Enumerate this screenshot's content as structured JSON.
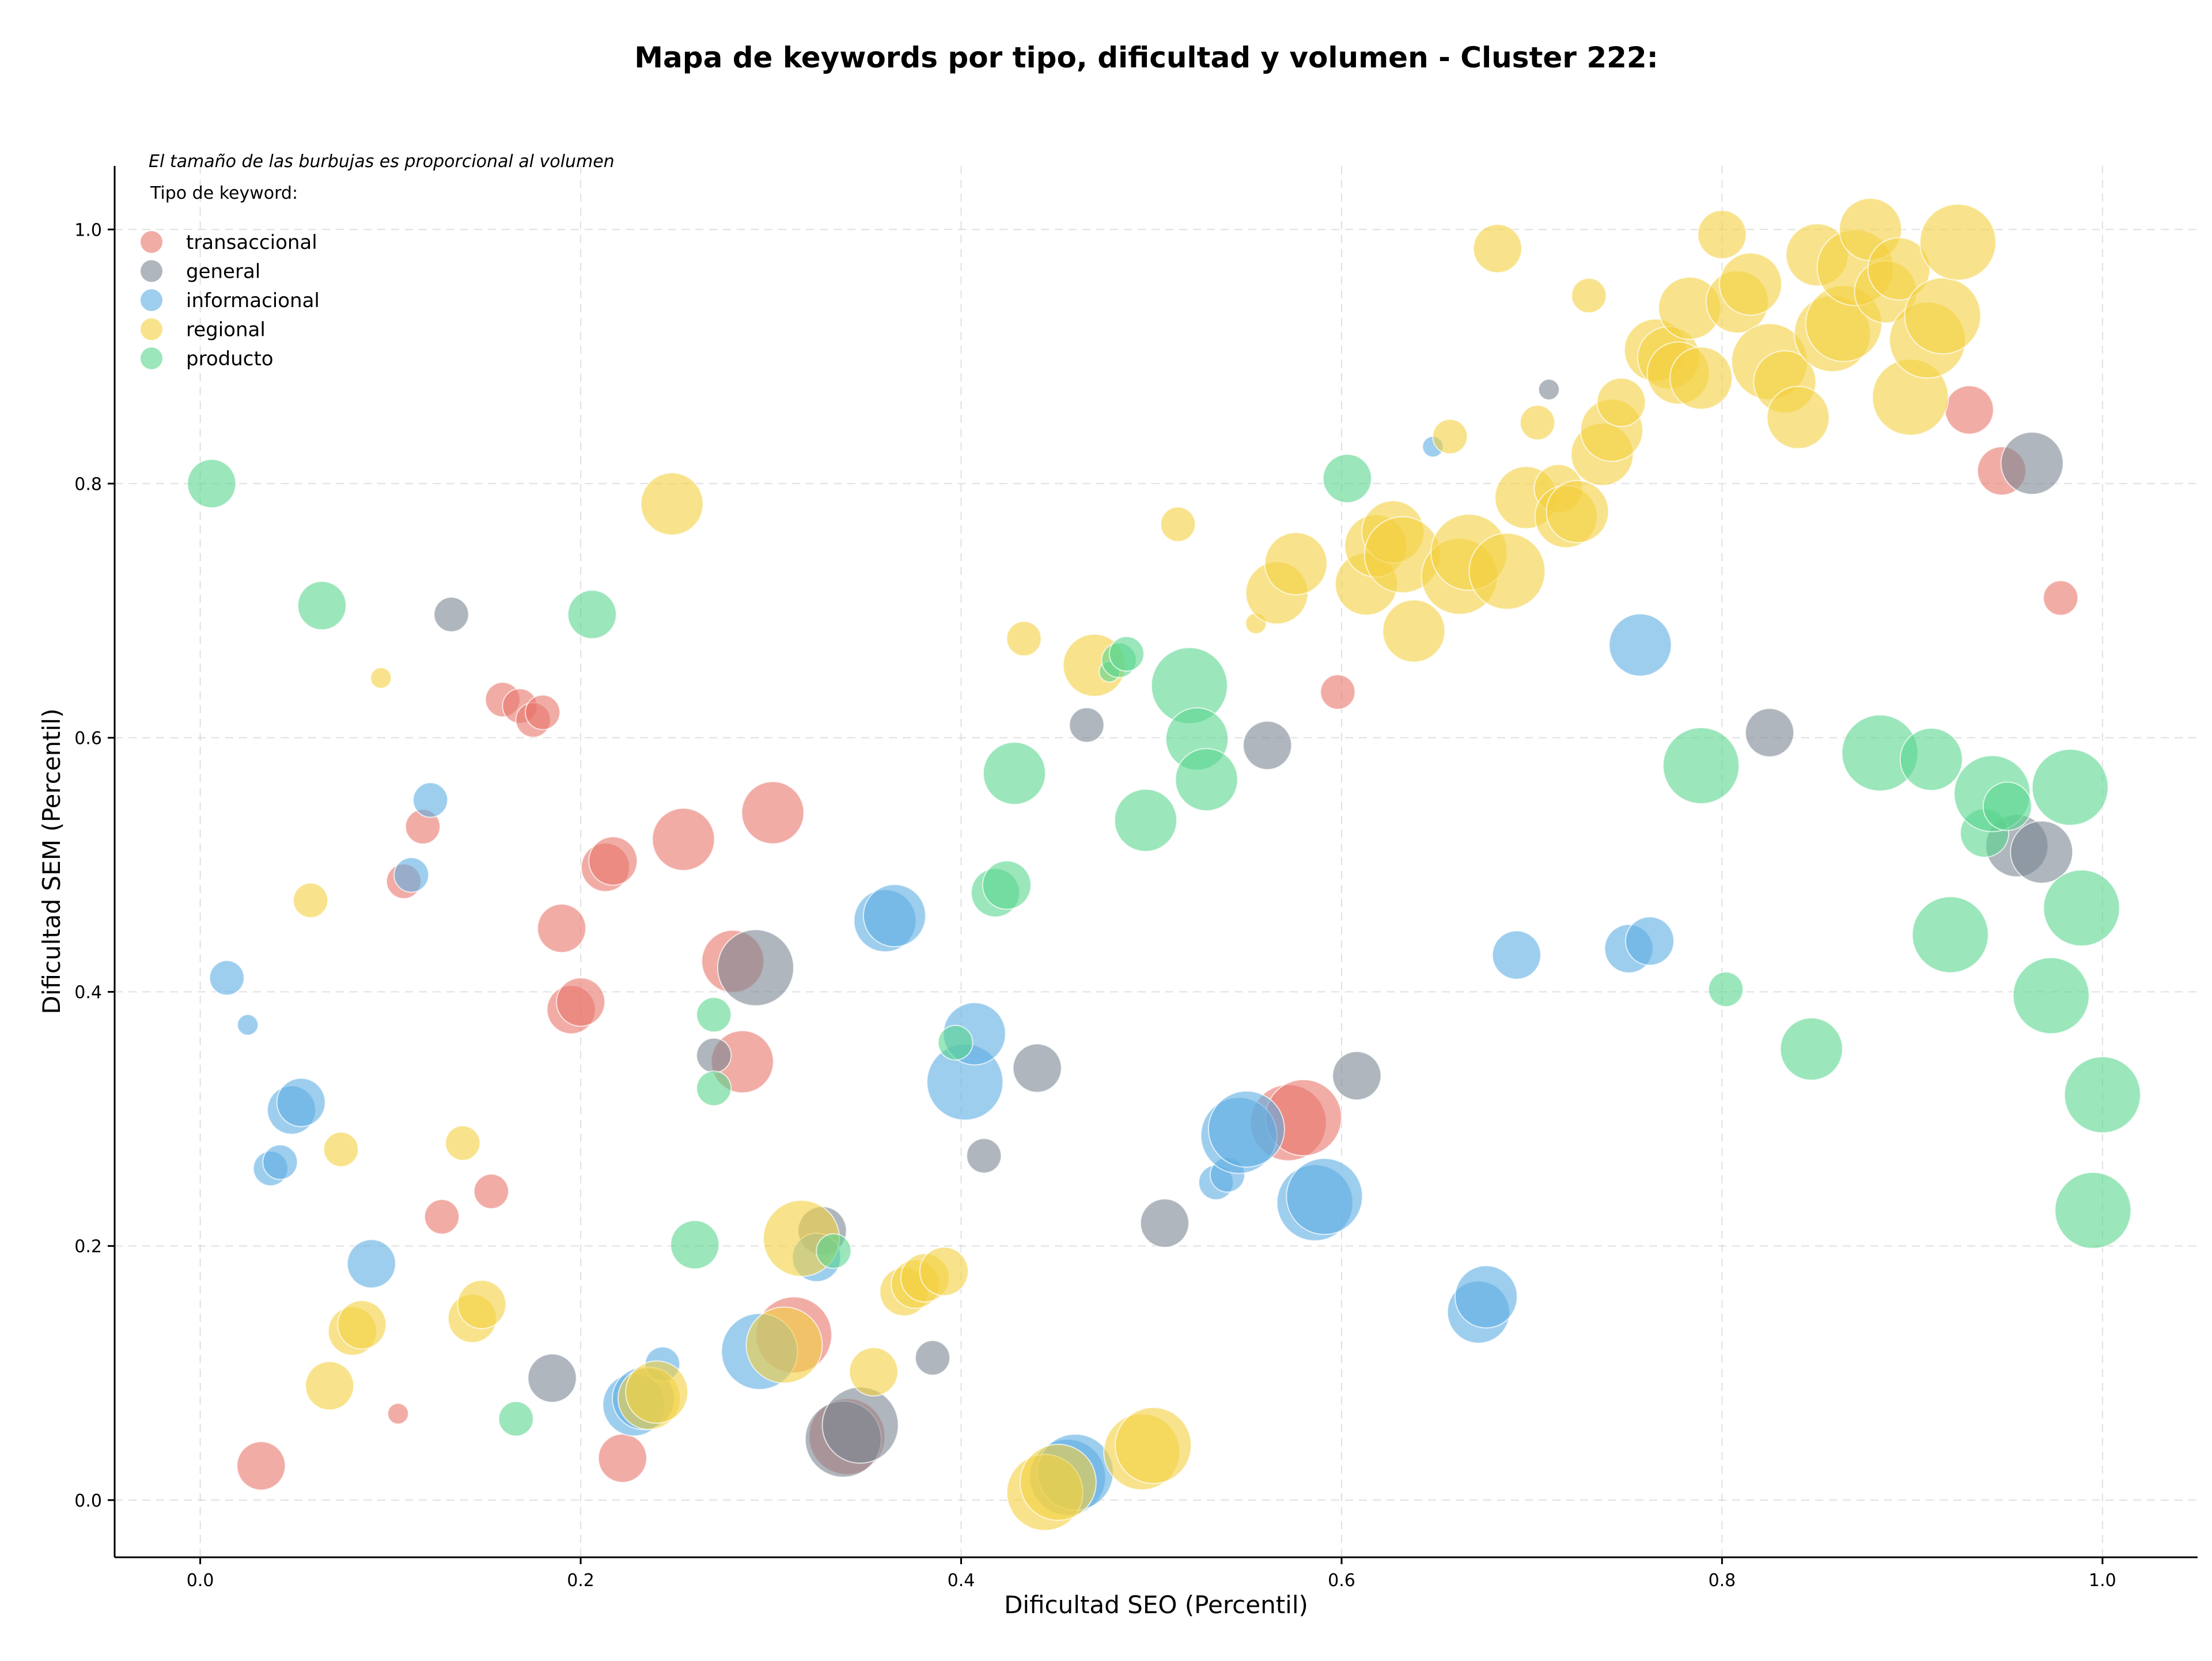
{
  "chart_data": {
    "type": "scatter",
    "title": "Mapa de keywords por tipo, dificultad y volumen - Cluster 222:",
    "xlabel": "Dificultad SEO (Percentil)",
    "ylabel": "Dificultad SEM (Percentil)",
    "xlim": [
      -0.045,
      1.05
    ],
    "ylim": [
      -0.045,
      1.05
    ],
    "xticks": [
      0.0,
      0.2,
      0.4,
      0.6,
      0.8,
      1.0
    ],
    "yticks": [
      0.0,
      0.2,
      0.4,
      0.6,
      0.8,
      1.0
    ],
    "xtick_labels": [
      "0.0",
      "0.2",
      "0.4",
      "0.6",
      "0.8",
      "1.0"
    ],
    "ytick_labels": [
      "0.0",
      "0.2",
      "0.4",
      "0.6",
      "0.8",
      "1.0"
    ],
    "grid": true,
    "note": "El tamaño de las burbujas es proporcional al volumen",
    "legend_title": "Tipo de keyword:",
    "legend_position": "top-left",
    "series": [
      {
        "name": "transaccional",
        "color": "#e8756a",
        "points": [
          [
            0.032,
            0.027,
            3
          ],
          [
            0.104,
            0.068,
            1
          ],
          [
            0.127,
            0.223,
            2
          ],
          [
            0.117,
            0.53,
            2
          ],
          [
            0.107,
            0.487,
            2
          ],
          [
            0.153,
            0.243,
            2
          ],
          [
            0.159,
            0.63,
            2
          ],
          [
            0.168,
            0.625,
            2
          ],
          [
            0.175,
            0.614,
            2
          ],
          [
            0.18,
            0.62,
            2
          ],
          [
            0.19,
            0.45,
            3
          ],
          [
            0.195,
            0.386,
            3
          ],
          [
            0.2,
            0.392,
            3
          ],
          [
            0.213,
            0.498,
            3
          ],
          [
            0.217,
            0.503,
            3
          ],
          [
            0.222,
            0.033,
            3
          ],
          [
            0.254,
            0.52,
            4
          ],
          [
            0.28,
            0.424,
            4
          ],
          [
            0.285,
            0.345,
            4
          ],
          [
            0.301,
            0.541,
            4
          ],
          [
            0.312,
            0.13,
            5
          ],
          [
            0.34,
            0.05,
            5
          ],
          [
            0.572,
            0.297,
            5
          ],
          [
            0.58,
            0.301,
            5
          ],
          [
            0.598,
            0.636,
            2
          ],
          [
            0.93,
            0.858,
            3
          ],
          [
            0.947,
            0.81,
            3
          ],
          [
            0.978,
            0.71,
            2
          ]
        ]
      },
      {
        "name": "general",
        "color": "#7a8591",
        "points": [
          [
            0.132,
            0.697,
            2
          ],
          [
            0.185,
            0.096,
            3
          ],
          [
            0.27,
            0.35,
            2
          ],
          [
            0.292,
            0.419,
            5
          ],
          [
            0.327,
            0.212,
            3
          ],
          [
            0.338,
            0.048,
            5
          ],
          [
            0.347,
            0.059,
            5
          ],
          [
            0.385,
            0.112,
            2
          ],
          [
            0.412,
            0.271,
            2
          ],
          [
            0.44,
            0.34,
            3
          ],
          [
            0.466,
            0.61,
            2
          ],
          [
            0.507,
            0.218,
            3
          ],
          [
            0.561,
            0.594,
            3
          ],
          [
            0.608,
            0.334,
            3
          ],
          [
            0.709,
            0.874,
            1
          ],
          [
            0.825,
            0.604,
            3
          ],
          [
            0.955,
            0.515,
            4
          ],
          [
            0.963,
            0.816,
            4
          ],
          [
            0.968,
            0.51,
            4
          ]
        ]
      },
      {
        "name": "informacional",
        "color": "#5dade2",
        "points": [
          [
            0.014,
            0.411,
            2
          ],
          [
            0.025,
            0.374,
            1
          ],
          [
            0.037,
            0.261,
            2
          ],
          [
            0.042,
            0.266,
            2
          ],
          [
            0.048,
            0.307,
            3
          ],
          [
            0.053,
            0.313,
            3
          ],
          [
            0.09,
            0.186,
            3
          ],
          [
            0.111,
            0.492,
            2
          ],
          [
            0.121,
            0.551,
            2
          ],
          [
            0.228,
            0.075,
            4
          ],
          [
            0.233,
            0.08,
            4
          ],
          [
            0.243,
            0.107,
            2
          ],
          [
            0.294,
            0.117,
            5
          ],
          [
            0.324,
            0.191,
            3
          ],
          [
            0.36,
            0.456,
            4
          ],
          [
            0.365,
            0.46,
            4
          ],
          [
            0.402,
            0.329,
            5
          ],
          [
            0.407,
            0.367,
            4
          ],
          [
            0.456,
            0.018,
            5
          ],
          [
            0.46,
            0.022,
            5
          ],
          [
            0.534,
            0.25,
            2
          ],
          [
            0.54,
            0.256,
            2
          ],
          [
            0.546,
            0.287,
            5
          ],
          [
            0.55,
            0.292,
            5
          ],
          [
            0.586,
            0.234,
            5
          ],
          [
            0.591,
            0.239,
            5
          ],
          [
            0.648,
            0.829,
            1
          ],
          [
            0.672,
            0.148,
            4
          ],
          [
            0.676,
            0.16,
            4
          ],
          [
            0.692,
            0.429,
            3
          ],
          [
            0.751,
            0.434,
            3
          ],
          [
            0.757,
            0.673,
            4
          ],
          [
            0.762,
            0.44,
            3
          ]
        ]
      },
      {
        "name": "regional",
        "color": "#f4d03f",
        "points": [
          [
            0.058,
            0.472,
            2
          ],
          [
            0.068,
            0.09,
            3
          ],
          [
            0.074,
            0.276,
            2
          ],
          [
            0.08,
            0.133,
            3
          ],
          [
            0.085,
            0.138,
            3
          ],
          [
            0.095,
            0.647,
            1
          ],
          [
            0.138,
            0.281,
            2
          ],
          [
            0.143,
            0.143,
            3
          ],
          [
            0.148,
            0.154,
            3
          ],
          [
            0.248,
            0.784,
            4
          ],
          [
            0.236,
            0.08,
            4
          ],
          [
            0.24,
            0.085,
            4
          ],
          [
            0.316,
            0.206,
            5
          ],
          [
            0.307,
            0.122,
            5
          ],
          [
            0.354,
            0.101,
            3
          ],
          [
            0.37,
            0.164,
            3
          ],
          [
            0.376,
            0.17,
            3
          ],
          [
            0.381,
            0.175,
            3
          ],
          [
            0.391,
            0.18,
            3
          ],
          [
            0.433,
            0.678,
            2
          ],
          [
            0.444,
            0.006,
            5
          ],
          [
            0.451,
            0.014,
            5
          ],
          [
            0.47,
            0.657,
            4
          ],
          [
            0.495,
            0.038,
            5
          ],
          [
            0.501,
            0.043,
            5
          ],
          [
            0.514,
            0.768,
            2
          ],
          [
            0.555,
            0.69,
            1
          ],
          [
            0.566,
            0.714,
            4
          ],
          [
            0.576,
            0.737,
            4
          ],
          [
            0.613,
            0.721,
            4
          ],
          [
            0.618,
            0.751,
            4
          ],
          [
            0.627,
            0.762,
            4
          ],
          [
            0.632,
            0.744,
            5
          ],
          [
            0.638,
            0.684,
            4
          ],
          [
            0.657,
            0.837,
            2
          ],
          [
            0.662,
            0.727,
            5
          ],
          [
            0.667,
            0.746,
            5
          ],
          [
            0.682,
            0.985,
            3
          ],
          [
            0.687,
            0.731,
            5
          ],
          [
            0.697,
            0.789,
            4
          ],
          [
            0.703,
            0.848,
            2
          ],
          [
            0.714,
            0.796,
            3
          ],
          [
            0.718,
            0.774,
            4
          ],
          [
            0.724,
            0.778,
            4
          ],
          [
            0.73,
            0.948,
            2
          ],
          [
            0.737,
            0.823,
            4
          ],
          [
            0.742,
            0.842,
            4
          ],
          [
            0.747,
            0.864,
            3
          ],
          [
            0.765,
            0.905,
            4
          ],
          [
            0.772,
            0.899,
            4
          ],
          [
            0.777,
            0.887,
            4
          ],
          [
            0.783,
            0.938,
            4
          ],
          [
            0.789,
            0.883,
            4
          ],
          [
            0.8,
            0.996,
            3
          ],
          [
            0.808,
            0.943,
            4
          ],
          [
            0.815,
            0.957,
            4
          ],
          [
            0.825,
            0.896,
            5
          ],
          [
            0.833,
            0.88,
            4
          ],
          [
            0.84,
            0.852,
            4
          ],
          [
            0.85,
            0.98,
            4
          ],
          [
            0.858,
            0.918,
            5
          ],
          [
            0.864,
            0.926,
            5
          ],
          [
            0.87,
            0.97,
            5
          ],
          [
            0.878,
            1.0,
            4
          ],
          [
            0.886,
            0.951,
            4
          ],
          [
            0.893,
            0.969,
            4
          ],
          [
            0.899,
            0.868,
            5
          ],
          [
            0.908,
            0.913,
            5
          ],
          [
            0.916,
            0.932,
            5
          ],
          [
            0.924,
            0.99,
            5
          ]
        ]
      },
      {
        "name": "producto",
        "color": "#58d68d",
        "points": [
          [
            0.006,
            0.8,
            3
          ],
          [
            0.064,
            0.704,
            3
          ],
          [
            0.166,
            0.064,
            2
          ],
          [
            0.206,
            0.697,
            3
          ],
          [
            0.26,
            0.201,
            3
          ],
          [
            0.27,
            0.382,
            2
          ],
          [
            0.27,
            0.324,
            2
          ],
          [
            0.333,
            0.196,
            2
          ],
          [
            0.397,
            0.36,
            2
          ],
          [
            0.418,
            0.478,
            3
          ],
          [
            0.424,
            0.484,
            3
          ],
          [
            0.428,
            0.572,
            4
          ],
          [
            0.478,
            0.652,
            1
          ],
          [
            0.483,
            0.661,
            2
          ],
          [
            0.487,
            0.666,
            2
          ],
          [
            0.497,
            0.535,
            4
          ],
          [
            0.52,
            0.641,
            5
          ],
          [
            0.524,
            0.599,
            4
          ],
          [
            0.529,
            0.567,
            4
          ],
          [
            0.603,
            0.804,
            3
          ],
          [
            0.789,
            0.578,
            5
          ],
          [
            0.802,
            0.402,
            2
          ],
          [
            0.847,
            0.355,
            4
          ],
          [
            0.883,
            0.588,
            5
          ],
          [
            0.91,
            0.583,
            4
          ],
          [
            0.92,
            0.445,
            5
          ],
          [
            0.938,
            0.525,
            3
          ],
          [
            0.942,
            0.556,
            5
          ],
          [
            0.95,
            0.546,
            3
          ],
          [
            0.973,
            0.397,
            5
          ],
          [
            0.983,
            0.561,
            5
          ],
          [
            0.989,
            0.466,
            5
          ],
          [
            1.0,
            0.319,
            5
          ],
          [
            0.995,
            0.228,
            5
          ]
        ]
      }
    ]
  }
}
